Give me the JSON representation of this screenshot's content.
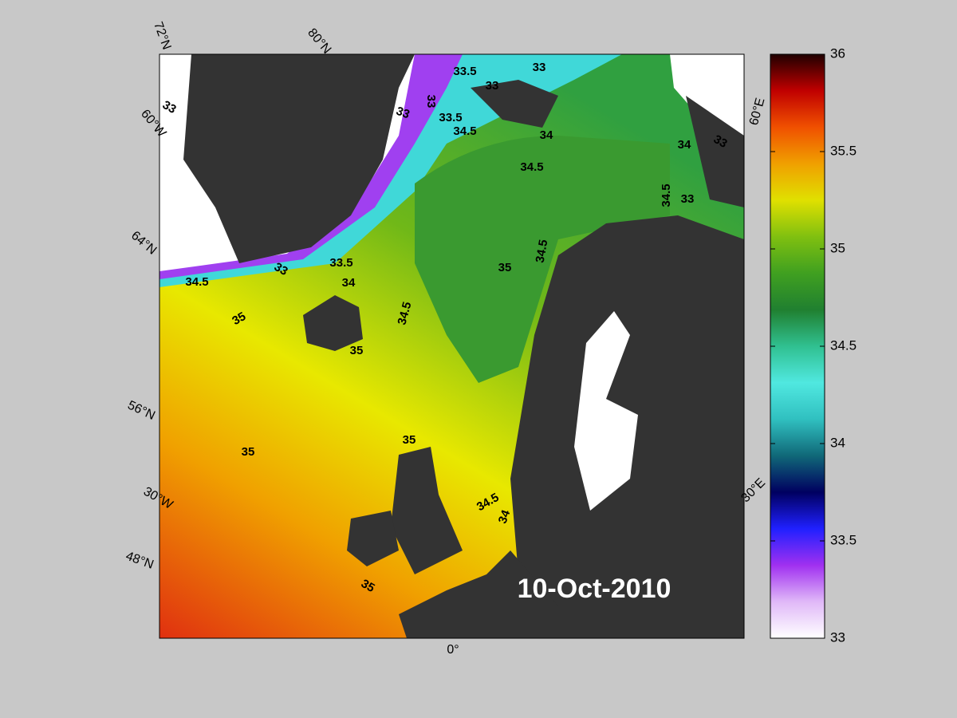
{
  "map": {
    "date": "10-Oct-2010",
    "graticule_labels": [
      "72°N",
      "80°N",
      "60°W",
      "64°N",
      "56°N",
      "30°W",
      "48°N",
      "0°",
      "60°E",
      "30°E"
    ],
    "contour_labels": [
      "33",
      "33.5",
      "33",
      "33",
      "33",
      "33.5",
      "33",
      "34.5",
      "34",
      "34.5",
      "34",
      "33",
      "34.5",
      "33",
      "34.5",
      "35",
      "33",
      "33.5",
      "34",
      "34.5",
      "34.5",
      "35",
      "35",
      "35",
      "35",
      "34.5",
      "34",
      "35"
    ],
    "colorbar": {
      "lim": [
        33,
        36
      ],
      "ticks": [
        33,
        33.5,
        34,
        34.5,
        35,
        35.5,
        36
      ],
      "colormap": [
        "#ffffff",
        "#e0b8f8",
        "#a030f0",
        "#2020ff",
        "#000060",
        "#106878",
        "#30c0c0",
        "#50e8e0",
        "#30c090",
        "#208030",
        "#40a020",
        "#80c010",
        "#e0e000",
        "#f0a000",
        "#f05000",
        "#c00000",
        "#200000"
      ]
    }
  }
}
